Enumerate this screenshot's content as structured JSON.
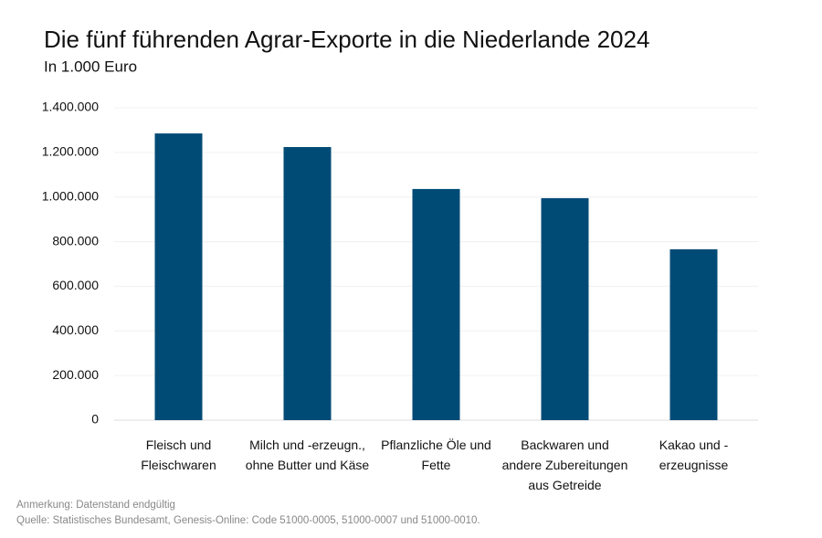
{
  "chart_data": {
    "type": "bar",
    "title": "Die fünf führenden Agrar-Exporte in die Niederlande 2024",
    "subtitle": "In 1.000 Euro",
    "categories": [
      "Fleisch und\nFleischwaren",
      "Milch und -erzeugn.,\nohne Butter und Käse",
      "Pflanzliche Öle und\nFette",
      "Backwaren und\nandere Zubereitungen\naus Getreide",
      "Kakao und -\nerzeugnisse"
    ],
    "values": [
      1285000,
      1224000,
      1036000,
      995000,
      766000
    ],
    "color": "#004b76",
    "ylim": [
      0,
      1400000
    ],
    "yticks": [
      0,
      {
        "value": 200000,
        "label": "200.000"
      },
      {
        "value": 400000,
        "label": "400.000"
      },
      {
        "value": 600000,
        "label": "600.000"
      },
      {
        "value": 800000,
        "label": "800.000"
      },
      {
        "value": 1000000,
        "label": "1.000.000"
      },
      {
        "value": 1200000,
        "label": "1.200.000"
      },
      {
        "value": 1400000,
        "label": "1.400.000"
      }
    ],
    "grid": true,
    "note": "Anmerkung: Datenstand endgültig",
    "source": "Quelle: Statistisches Bundesamt, Genesis-Online: Code 51000-0005, 51000-0007 und 51000-0010."
  }
}
